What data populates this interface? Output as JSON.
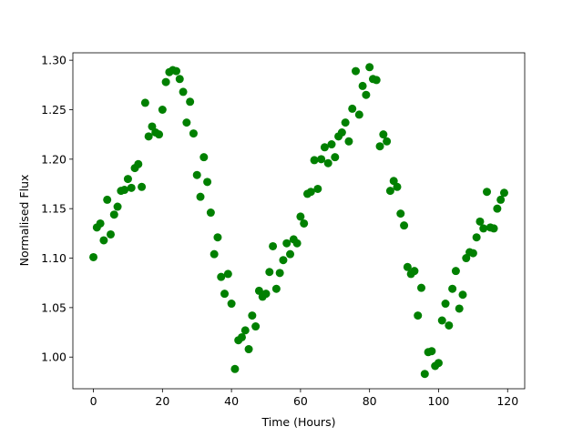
{
  "chart_data": {
    "type": "scatter",
    "xlabel": "Time (Hours)",
    "ylabel": "Normalised Flux",
    "color": "#008000",
    "x": [
      0,
      1,
      2,
      3,
      4,
      5,
      6,
      7,
      8,
      9,
      10,
      11,
      12,
      13,
      14,
      15,
      16,
      17,
      18,
      19,
      20,
      21,
      22,
      23,
      24,
      25,
      26,
      27,
      28,
      29,
      30,
      31,
      32,
      33,
      34,
      35,
      36,
      37,
      38,
      39,
      40,
      41,
      42,
      43,
      44,
      45,
      46,
      47,
      48,
      49,
      50,
      51,
      52,
      53,
      54,
      55,
      56,
      57,
      58,
      59,
      60,
      61,
      62,
      63,
      64,
      65,
      66,
      67,
      68,
      69,
      70,
      71,
      72,
      73,
      74,
      75,
      76,
      77,
      78,
      79,
      80,
      81,
      82,
      83,
      84,
      85,
      86,
      87,
      88,
      89,
      90,
      91,
      92,
      93,
      94,
      95,
      96,
      97,
      98,
      99,
      100,
      101,
      102,
      103,
      104,
      105,
      106,
      107,
      108,
      109,
      110,
      111,
      112,
      113,
      114,
      115,
      116,
      117,
      118,
      119
    ],
    "values": [
      1.101,
      1.131,
      1.135,
      1.118,
      1.159,
      1.124,
      1.144,
      1.152,
      1.168,
      1.169,
      1.18,
      1.171,
      1.191,
      1.195,
      1.172,
      1.257,
      1.223,
      1.233,
      1.227,
      1.225,
      1.25,
      1.278,
      1.288,
      1.29,
      1.289,
      1.281,
      1.268,
      1.237,
      1.258,
      1.226,
      1.184,
      1.162,
      1.202,
      1.177,
      1.146,
      1.104,
      1.121,
      1.081,
      1.064,
      1.084,
      1.054,
      0.988,
      1.017,
      1.02,
      1.027,
      1.008,
      1.042,
      1.031,
      1.067,
      1.061,
      1.064,
      1.086,
      1.112,
      1.069,
      1.085,
      1.098,
      1.115,
      1.104,
      1.119,
      1.115,
      1.142,
      1.135,
      1.165,
      1.167,
      1.199,
      1.17,
      1.2,
      1.212,
      1.196,
      1.215,
      1.202,
      1.223,
      1.227,
      1.237,
      1.218,
      1.251,
      1.289,
      1.245,
      1.274,
      1.265,
      1.293,
      1.281,
      1.28,
      1.213,
      1.225,
      1.218,
      1.168,
      1.178,
      1.172,
      1.145,
      1.133,
      1.091,
      1.084,
      1.087,
      1.042,
      1.07,
      0.983,
      1.005,
      1.006,
      0.991,
      0.994,
      1.037,
      1.054,
      1.032,
      1.069,
      1.087,
      1.049,
      1.063,
      1.1,
      1.106,
      1.105,
      1.121,
      1.137,
      1.13,
      1.167,
      1.131,
      1.13,
      1.15,
      1.159,
      1.166
    ],
    "xlim": [
      -5.95,
      124.95
    ],
    "xticks": [
      0,
      20,
      40,
      60,
      80,
      100,
      120
    ],
    "ylim": [
      0.968,
      1.3075
    ],
    "yticks": [
      {
        "value": 1.0,
        "label": "1.00"
      },
      {
        "value": 1.05,
        "label": "1.05"
      },
      {
        "value": 1.1,
        "label": "1.10"
      },
      {
        "value": 1.15,
        "label": "1.15"
      },
      {
        "value": 1.2,
        "label": "1.20"
      },
      {
        "value": 1.25,
        "label": "1.25"
      },
      {
        "value": 1.3,
        "label": "1.30"
      }
    ],
    "grid": false
  }
}
